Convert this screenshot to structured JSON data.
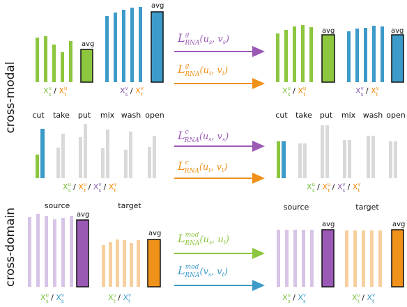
{
  "colors": {
    "green": "#8dc63f",
    "blue": "#3d9bc9",
    "purple": "#9b59b6",
    "light_purple": "#d7c4e6",
    "orange": "#f0911a",
    "light_orange": "#f7cf9e",
    "gray": "#d9d9d9",
    "label_green": "#7cc242",
    "label_orange": "#f28c0f",
    "label_purple": "#8e63b0",
    "label_blue": "#3d9bc9"
  },
  "row_titles": {
    "cross_modal": "cross-modal",
    "cross_domain": "cross-domain"
  },
  "avg_label": "avg",
  "row1": {
    "left_green_label": {
      "a": "X",
      "a_sup": "u",
      "a_sub": "s",
      "b": "X",
      "b_sup": "u",
      "b_sub": "t"
    },
    "left_blue_label": {
      "a": "X",
      "a_sup": "v",
      "a_sub": "s",
      "b": "X",
      "b_sup": "v",
      "b_sub": "t"
    },
    "formula_top": {
      "base": "L",
      "sup": "g",
      "sub": "RNA",
      "args": "(u",
      "arg1_sub": "s",
      "mid": ", v",
      "arg2_sub": "s",
      "end": ")"
    },
    "formula_bottom": {
      "base": "L",
      "sup": "g",
      "sub": "RNA",
      "args": "(u",
      "arg1_sub": "t",
      "mid": ", v",
      "arg2_sub": "t",
      "end": ")"
    }
  },
  "row2": {
    "categories": [
      "cut",
      "take",
      "put",
      "mix",
      "wash",
      "open"
    ],
    "axis_label": {
      "a": "X",
      "a_sup": "u",
      "a_sub": "s",
      "b": "X",
      "b_sup": "u",
      "b_sub": "t",
      "c": "X",
      "c_sup": "v",
      "c_sub": "s",
      "d": "X",
      "d_sup": "v",
      "d_sub": "t"
    },
    "formula_top": {
      "base": "L",
      "sup": "c",
      "sub": "RNA",
      "args": "(u",
      "arg1_sub": "s",
      "mid": ", v",
      "arg2_sub": "s",
      "end": ")"
    },
    "formula_bottom": {
      "base": "L",
      "sup": "c",
      "sub": "RNA",
      "args": "(u",
      "arg1_sub": "t",
      "mid": ", v",
      "arg2_sub": "t",
      "end": ")"
    }
  },
  "row3": {
    "source_label": "source",
    "target_label": "target",
    "source_axis": {
      "a": "X",
      "a_sup": "u",
      "a_sub": "s",
      "b": "X",
      "b_sup": "v",
      "b_sub": "s"
    },
    "target_axis": {
      "a": "X",
      "a_sup": "u",
      "a_sub": "t",
      "b": "X",
      "b_sup": "v",
      "b_sub": "t"
    },
    "formula_top": {
      "base": "L",
      "sup": "mod",
      "sub": "RNA",
      "args": "(u",
      "arg1_sub": "s",
      "mid": ", u",
      "arg2_sub": "t",
      "end": ")"
    },
    "formula_bottom": {
      "base": "L",
      "sup": "mod",
      "sub": "RNA",
      "args": "(v",
      "arg1_sub": "s",
      "mid": ", v",
      "arg2_sub": "t",
      "end": ")"
    }
  }
}
